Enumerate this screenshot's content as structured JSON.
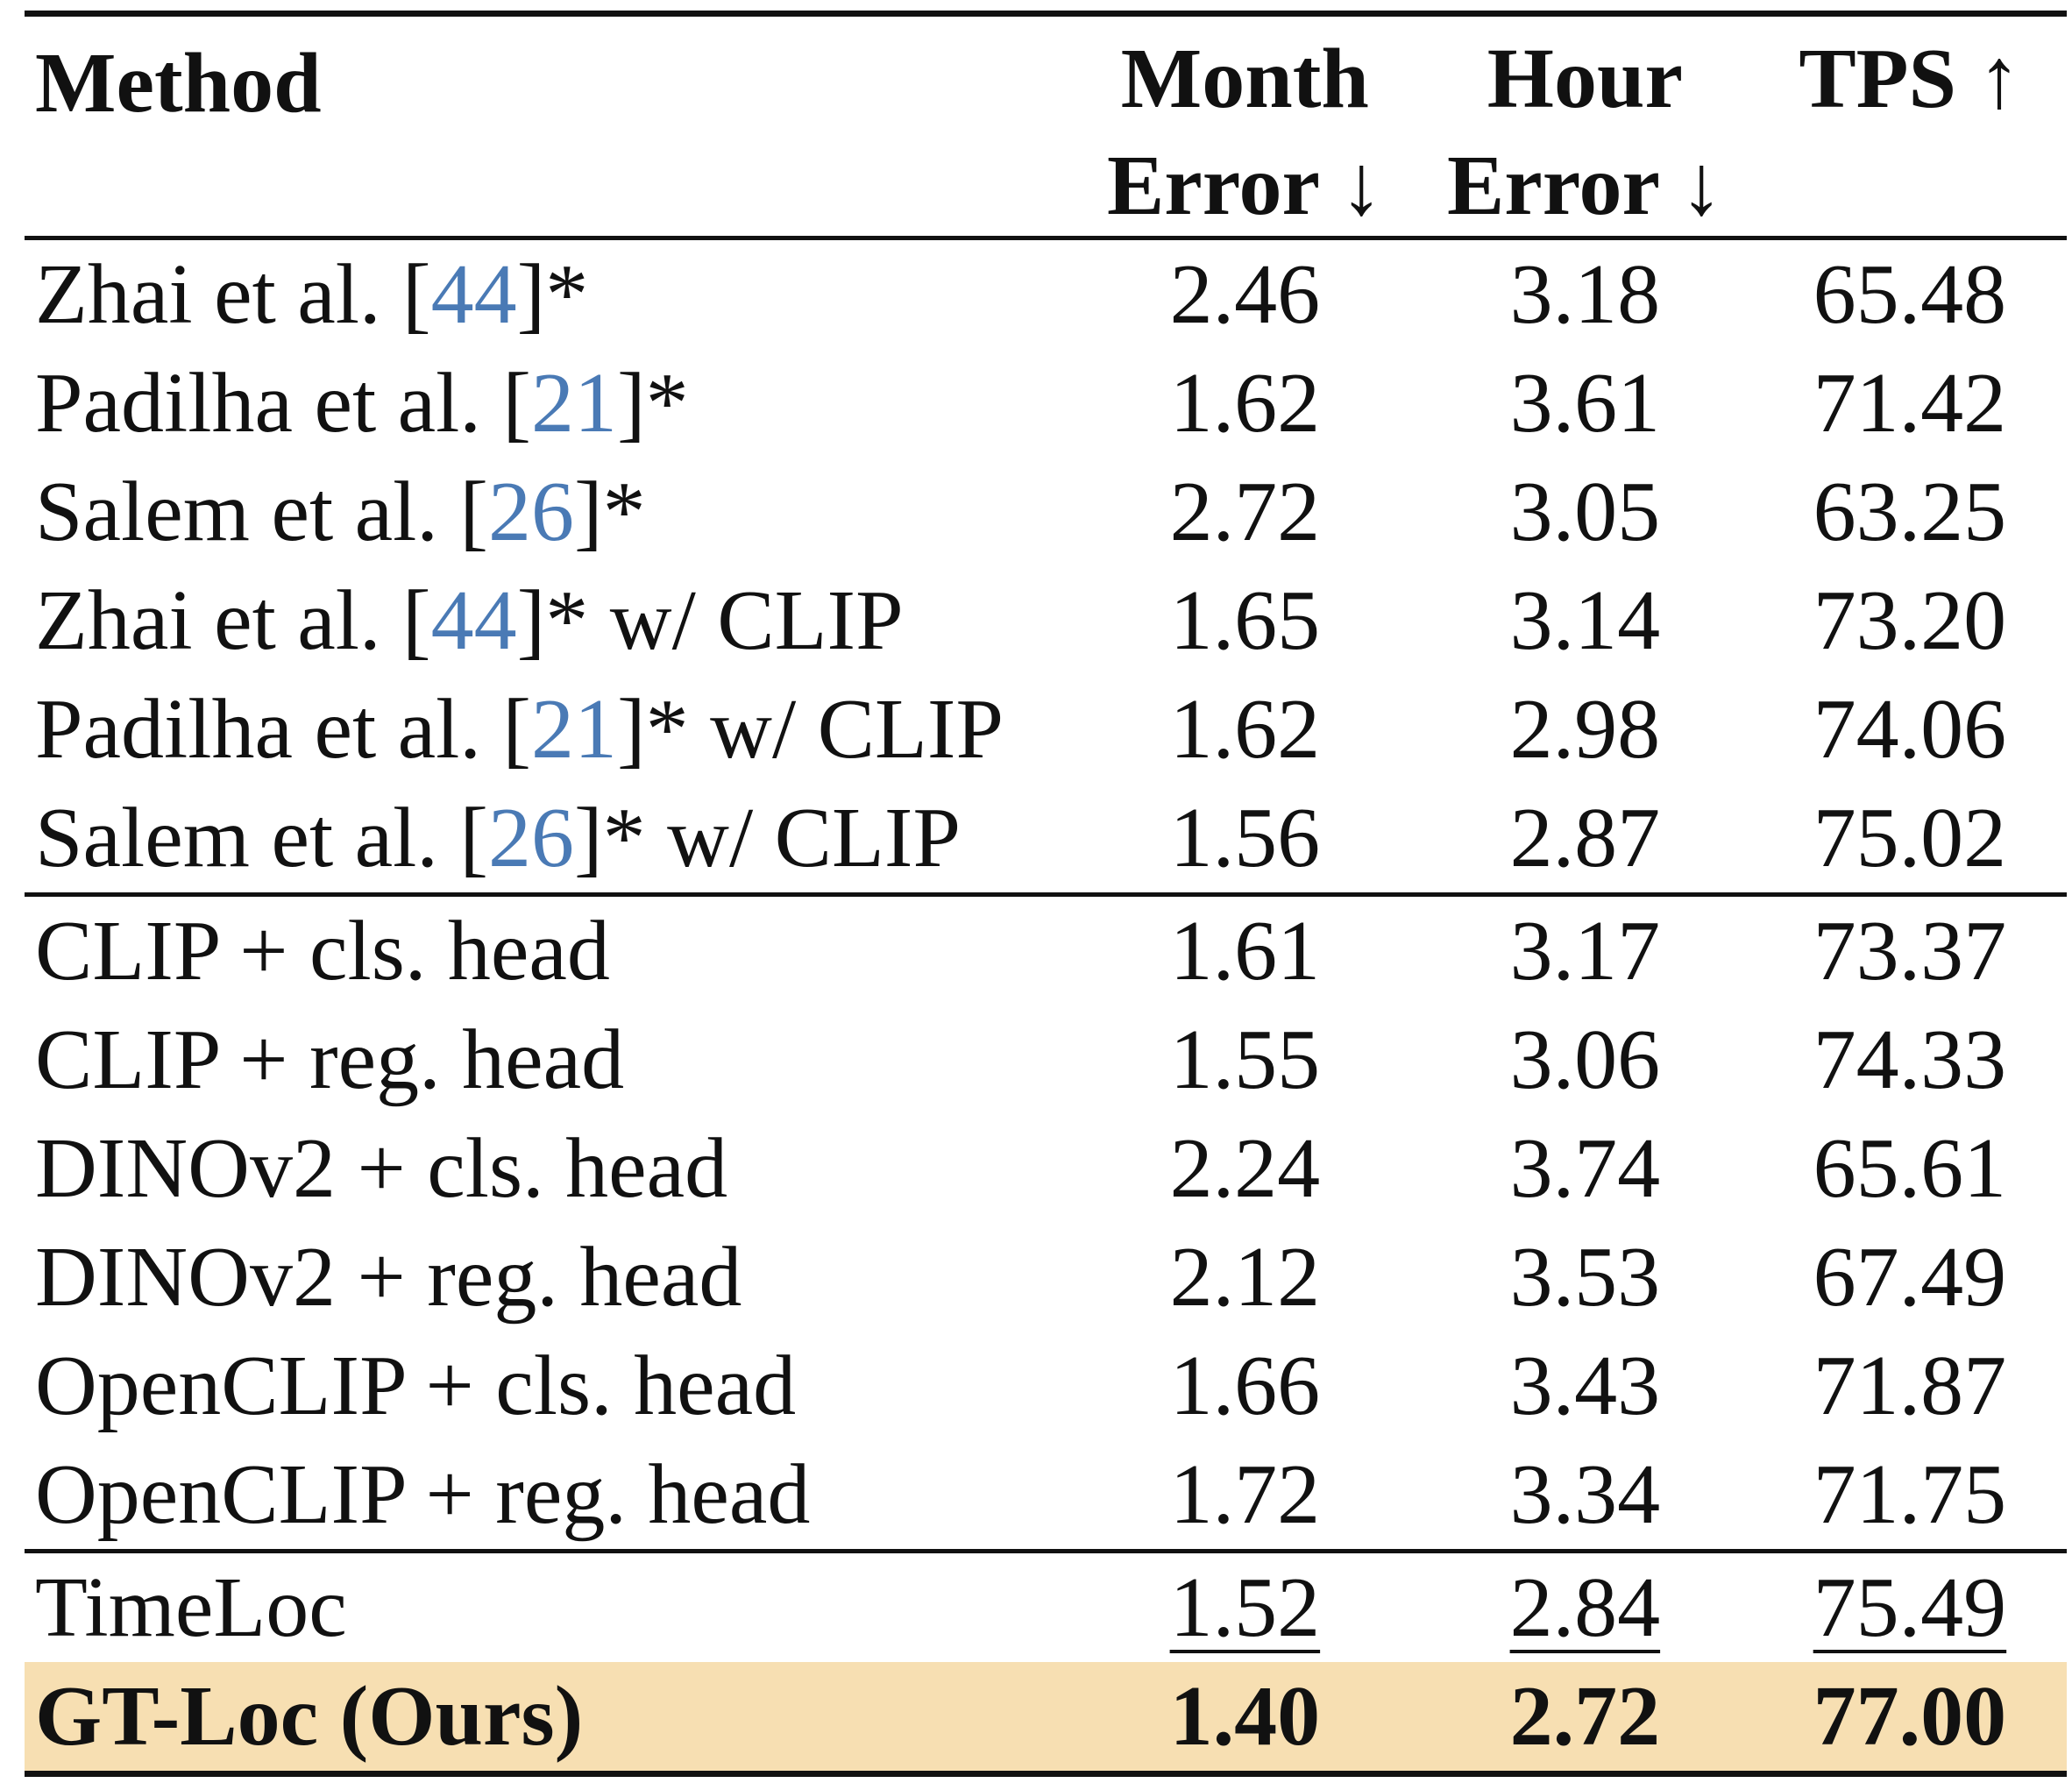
{
  "header": {
    "method": "Method",
    "month_l1": "Month",
    "month_l2": "Error ↓",
    "hour_l1": "Hour",
    "hour_l2": "Error ↓",
    "tps": "TPS ↑"
  },
  "rows": [
    {
      "name": "Zhai et al. [",
      "ref": "44",
      "suffix": "]*",
      "month": "2.46",
      "hour": "3.18",
      "tps": "65.48"
    },
    {
      "name": "Padilha et al. [",
      "ref": "21",
      "suffix": "]*",
      "month": "1.62",
      "hour": "3.61",
      "tps": "71.42"
    },
    {
      "name": "Salem et al. [",
      "ref": "26",
      "suffix": "]*",
      "month": "2.72",
      "hour": "3.05",
      "tps": "63.25"
    },
    {
      "name": "Zhai et al. [",
      "ref": "44",
      "suffix": "]* w/ CLIP",
      "month": "1.65",
      "hour": "3.14",
      "tps": "73.20"
    },
    {
      "name": "Padilha et al. [",
      "ref": "21",
      "suffix": "]* w/ CLIP",
      "month": "1.62",
      "hour": "2.98",
      "tps": "74.06"
    },
    {
      "name": "Salem et al. [",
      "ref": "26",
      "suffix": "]* w/ CLIP",
      "month": "1.56",
      "hour": "2.87",
      "tps": "75.02"
    },
    {
      "name": "CLIP + cls. head",
      "month": "1.61",
      "hour": "3.17",
      "tps": "73.37"
    },
    {
      "name": "CLIP + reg. head",
      "month": "1.55",
      "hour": "3.06",
      "tps": "74.33"
    },
    {
      "name": "DINOv2 + cls. head",
      "month": "2.24",
      "hour": "3.74",
      "tps": "65.61"
    },
    {
      "name": "DINOv2 + reg. head",
      "month": "2.12",
      "hour": "3.53",
      "tps": "67.49"
    },
    {
      "name": "OpenCLIP + cls. head",
      "month": "1.66",
      "hour": "3.43",
      "tps": "71.87"
    },
    {
      "name": "OpenCLIP + reg. head",
      "month": "1.72",
      "hour": "3.34",
      "tps": "71.75"
    },
    {
      "name": "TimeLoc",
      "month": "1.52",
      "hour": "2.84",
      "tps": "75.49"
    },
    {
      "name": "GT-Loc (Ours)",
      "month": "1.40",
      "hour": "2.72",
      "tps": "77.00"
    }
  ],
  "colors": {
    "ref_link": "#4a7ab5",
    "ours_highlight": "#f7dfb2"
  }
}
